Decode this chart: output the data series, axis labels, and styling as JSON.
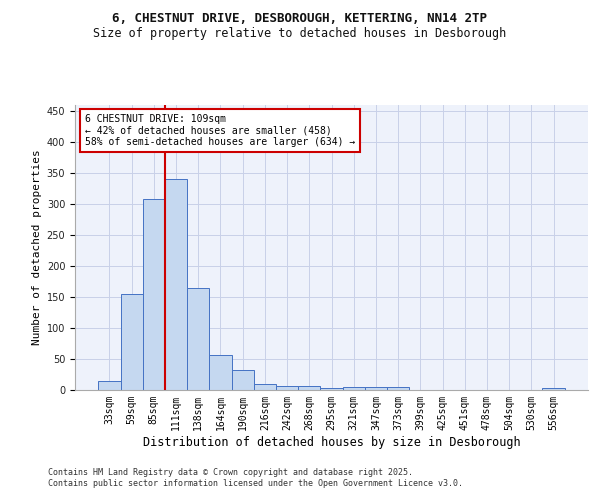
{
  "title_line1": "6, CHESTNUT DRIVE, DESBOROUGH, KETTERING, NN14 2TP",
  "title_line2": "Size of property relative to detached houses in Desborough",
  "xlabel": "Distribution of detached houses by size in Desborough",
  "ylabel": "Number of detached properties",
  "footer_line1": "Contains HM Land Registry data © Crown copyright and database right 2025.",
  "footer_line2": "Contains public sector information licensed under the Open Government Licence v3.0.",
  "annotation_line1": "6 CHESTNUT DRIVE: 109sqm",
  "annotation_line2": "← 42% of detached houses are smaller (458)",
  "annotation_line3": "58% of semi-detached houses are larger (634) →",
  "categories": [
    "33sqm",
    "59sqm",
    "85sqm",
    "111sqm",
    "138sqm",
    "164sqm",
    "190sqm",
    "216sqm",
    "242sqm",
    "268sqm",
    "295sqm",
    "321sqm",
    "347sqm",
    "373sqm",
    "399sqm",
    "425sqm",
    "451sqm",
    "478sqm",
    "504sqm",
    "530sqm",
    "556sqm"
  ],
  "values": [
    15,
    155,
    308,
    340,
    165,
    57,
    33,
    10,
    7,
    6,
    3,
    5,
    5,
    5,
    0,
    0,
    0,
    0,
    0,
    0,
    4
  ],
  "bar_color": "#c5d8f0",
  "bar_edge_color": "#4472c4",
  "vline_index": 2.5,
  "vline_color": "#cc0000",
  "annotation_box_color": "#cc0000",
  "ylim": [
    0,
    460
  ],
  "yticks": [
    0,
    50,
    100,
    150,
    200,
    250,
    300,
    350,
    400,
    450
  ],
  "background_color": "#eef2fb",
  "grid_color": "#c8d0e8",
  "title_fontsize": 9,
  "subtitle_fontsize": 8.5,
  "axis_label_fontsize": 8,
  "tick_fontsize": 7,
  "annotation_fontsize": 7,
  "footer_fontsize": 6
}
